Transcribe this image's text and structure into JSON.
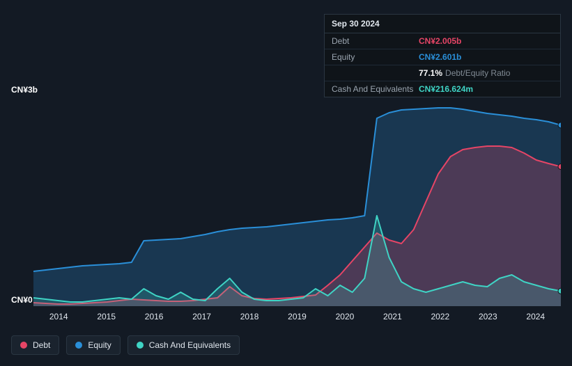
{
  "tooltip": {
    "date": "Sep 30 2024",
    "rows": [
      {
        "label": "Debt",
        "value": "CN¥2.005b",
        "color": "#e64566"
      },
      {
        "label": "Equity",
        "value": "CN¥2.601b",
        "color": "#2a8fd8"
      },
      {
        "label": "",
        "value": "77.1%",
        "note": "Debt/Equity Ratio",
        "color": "#ffffff"
      },
      {
        "label": "Cash And Equivalents",
        "value": "CN¥216.624m",
        "color": "#3fd4c5"
      }
    ]
  },
  "chart": {
    "type": "area",
    "background_color": "#131a24",
    "border_color": "#2a3642",
    "ylim": [
      0,
      3
    ],
    "y_unit": "CN¥",
    "y_unit_suffix": "b",
    "y_ticks": [
      {
        "value": 0,
        "label": "CN¥0"
      },
      {
        "value": 3,
        "label": "CN¥3b"
      }
    ],
    "x_years": [
      "2014",
      "2015",
      "2016",
      "2017",
      "2018",
      "2019",
      "2020",
      "2021",
      "2022",
      "2023",
      "2024"
    ],
    "series": [
      {
        "name": "Equity",
        "color": "#2a8fd8",
        "fill_opacity": 0.25,
        "data": [
          0.5,
          0.52,
          0.54,
          0.56,
          0.58,
          0.59,
          0.6,
          0.61,
          0.63,
          0.94,
          0.95,
          0.96,
          0.97,
          1.0,
          1.03,
          1.07,
          1.1,
          1.12,
          1.13,
          1.14,
          1.16,
          1.18,
          1.2,
          1.22,
          1.24,
          1.25,
          1.27,
          1.3,
          2.7,
          2.78,
          2.82,
          2.83,
          2.84,
          2.85,
          2.85,
          2.83,
          2.8,
          2.77,
          2.75,
          2.73,
          2.7,
          2.68,
          2.65,
          2.601
        ],
        "end_marker_color": "#2a8fd8"
      },
      {
        "name": "Debt",
        "color": "#e64566",
        "fill_opacity": 0.25,
        "data": [
          0.05,
          0.04,
          0.03,
          0.03,
          0.04,
          0.05,
          0.06,
          0.08,
          0.1,
          0.09,
          0.08,
          0.07,
          0.07,
          0.08,
          0.1,
          0.12,
          0.28,
          0.15,
          0.11,
          0.1,
          0.11,
          0.12,
          0.14,
          0.16,
          0.3,
          0.45,
          0.65,
          0.85,
          1.05,
          0.95,
          0.9,
          1.1,
          1.5,
          1.9,
          2.15,
          2.25,
          2.28,
          2.3,
          2.3,
          2.28,
          2.2,
          2.1,
          2.05,
          2.005
        ],
        "end_marker_color": "#e64566"
      },
      {
        "name": "Cash And Equivalents",
        "color": "#3fd4c5",
        "fill_opacity": 0.2,
        "data": [
          0.12,
          0.1,
          0.08,
          0.06,
          0.06,
          0.08,
          0.1,
          0.12,
          0.1,
          0.25,
          0.15,
          0.1,
          0.2,
          0.1,
          0.08,
          0.25,
          0.4,
          0.2,
          0.1,
          0.08,
          0.08,
          0.1,
          0.12,
          0.25,
          0.15,
          0.3,
          0.2,
          0.4,
          1.3,
          0.7,
          0.35,
          0.25,
          0.2,
          0.25,
          0.3,
          0.35,
          0.3,
          0.28,
          0.4,
          0.45,
          0.35,
          0.3,
          0.25,
          0.217
        ],
        "end_marker_color": "#3fd4c5"
      }
    ]
  },
  "legend": [
    {
      "name": "Debt",
      "color": "#e64566"
    },
    {
      "name": "Equity",
      "color": "#2a8fd8"
    },
    {
      "name": "Cash And Equivalents",
      "color": "#3fd4c5"
    }
  ]
}
